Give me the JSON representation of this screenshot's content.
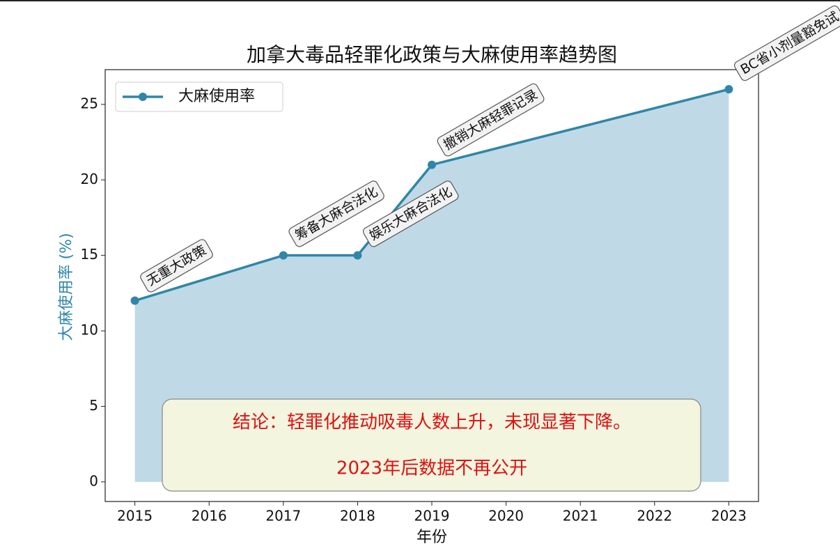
{
  "chart_data": {
    "type": "line",
    "title": "加拿大毒品轻罪化政策与大麻使用率趋势图",
    "xlabel": "年份",
    "ylabel": "大麻使用率 (%)",
    "x": [
      2015,
      2017,
      2018,
      2019,
      2023
    ],
    "series": [
      {
        "name": "大麻使用率",
        "color": "#2f86a8",
        "fill_color": "#bfdae6",
        "values": [
          12,
          15,
          15,
          21,
          26
        ]
      }
    ],
    "annotations": [
      "无重大政策",
      "筹备大麻合法化",
      "娱乐大麻合法化",
      "撤销大麻轻罪记录",
      "BC省小剂量豁免试"
    ],
    "xlim": [
      2014.6,
      2023.4
    ],
    "xticks": [
      2015,
      2016,
      2017,
      2018,
      2019,
      2020,
      2021,
      2022,
      2023
    ],
    "ylim": [
      -1.3,
      27.3
    ],
    "yticks": [
      0,
      5,
      10,
      15,
      20,
      25
    ],
    "legend": "upper left",
    "conclusion": [
      "结论：轻罪化推动吸毒人数上升，未现显著下降。",
      "2023年后数据不再公开"
    ]
  }
}
